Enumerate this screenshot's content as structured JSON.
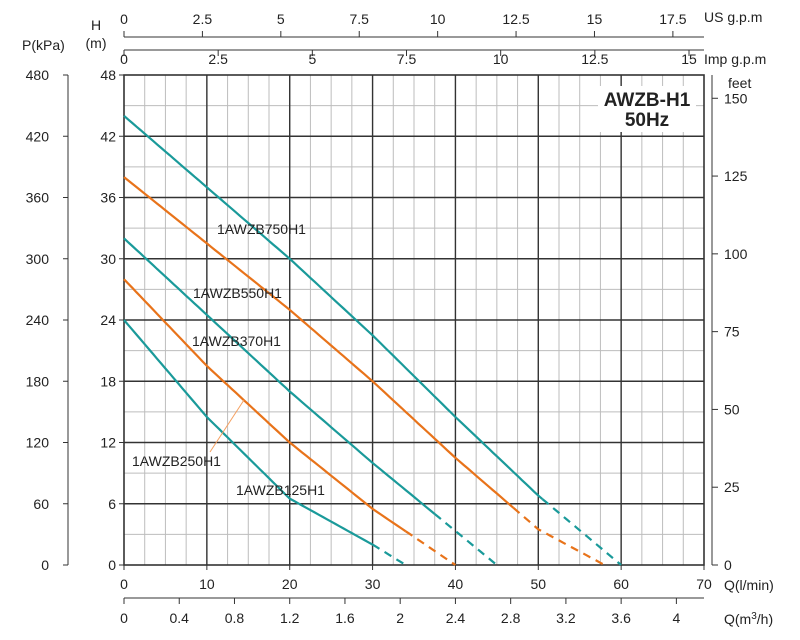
{
  "chart_data": {
    "type": "line",
    "title": "AWZB-H1",
    "subtitle": "50Hz",
    "xlabel": "Q(l/min)",
    "ylabel": "H (m)",
    "xlim": [
      0,
      70
    ],
    "ylim": [
      0,
      48
    ],
    "grid": true,
    "x_ticks": [
      "0",
      "10",
      "20",
      "30",
      "40",
      "50",
      "60",
      "70"
    ],
    "y_ticks": [
      "0",
      "6",
      "12",
      "18",
      "24",
      "30",
      "36",
      "42",
      "48"
    ],
    "y_title_line1": "H",
    "y_title_line2": "(m)",
    "secondary_axes": {
      "pressure": {
        "label": "P(kPa)",
        "ticks": [
          "0",
          "60",
          "120",
          "180",
          "240",
          "300",
          "360",
          "420",
          "480"
        ]
      },
      "feet": {
        "label": "feet",
        "ticks": [
          {
            "value": 0,
            "label": "0"
          },
          {
            "value": 25,
            "label": "25"
          },
          {
            "value": 50,
            "label": "50"
          },
          {
            "value": 75,
            "label": "75"
          },
          {
            "value": 100,
            "label": "100"
          },
          {
            "value": 125,
            "label": "125"
          },
          {
            "value": 150,
            "label": "150"
          }
        ]
      },
      "us_gpm": {
        "label": "US  g.p.m",
        "ticks": [
          {
            "value": 0,
            "label": "0"
          },
          {
            "value": 2.5,
            "label": "2.5"
          },
          {
            "value": 5,
            "label": "5"
          },
          {
            "value": 7.5,
            "label": "7.5"
          },
          {
            "value": 10,
            "label": "10"
          },
          {
            "value": 12.5,
            "label": "12.5"
          },
          {
            "value": 15,
            "label": "15"
          },
          {
            "value": 17.5,
            "label": "17.5"
          }
        ]
      },
      "imp_gpm": {
        "label": "Imp  g.p.m",
        "ticks": [
          {
            "value": 0,
            "label": "0"
          },
          {
            "value": 2.5,
            "label": "2.5"
          },
          {
            "value": 5,
            "label": "5"
          },
          {
            "value": 7.5,
            "label": "7.5"
          },
          {
            "value": 10,
            "label": "10"
          },
          {
            "value": 12.5,
            "label": "12.5"
          },
          {
            "value": 15,
            "label": "15"
          }
        ]
      },
      "m3h": {
        "label": "Q(m3/h)",
        "ticks": [
          {
            "value": 0,
            "label": "0"
          },
          {
            "value": 0.4,
            "label": "0.4"
          },
          {
            "value": 0.8,
            "label": "0.8"
          },
          {
            "value": 1.2,
            "label": "1.2"
          },
          {
            "value": 1.6,
            "label": "1.6"
          },
          {
            "value": 2.0,
            "label": "2"
          },
          {
            "value": 2.4,
            "label": "2.4"
          },
          {
            "value": 2.8,
            "label": "2.8"
          },
          {
            "value": 3.2,
            "label": "3.2"
          },
          {
            "value": 3.6,
            "label": "3.6"
          },
          {
            "value": 4.0,
            "label": "4"
          }
        ]
      }
    },
    "series": [
      {
        "name": "1AWZB750H1",
        "color": "#1a9a9a",
        "solid_x": [
          0,
          50.5
        ],
        "dashed_x": [
          50.5,
          60
        ],
        "points": [
          [
            0,
            44
          ],
          [
            10,
            37
          ],
          [
            20,
            30
          ],
          [
            30,
            22.5
          ],
          [
            40,
            14.5
          ],
          [
            50,
            6.8
          ],
          [
            60,
            0
          ]
        ]
      },
      {
        "name": "1AWZB550H1",
        "color": "#e8731a",
        "solid_x": [
          0,
          47
        ],
        "dashed_x": [
          47,
          58
        ],
        "points": [
          [
            0,
            38
          ],
          [
            10,
            31.5
          ],
          [
            20,
            25
          ],
          [
            30,
            18
          ],
          [
            40,
            10.5
          ],
          [
            50,
            3.5
          ],
          [
            58,
            0
          ]
        ]
      },
      {
        "name": "1AWZB370H1",
        "color": "#1a9a9a",
        "solid_x": [
          0,
          37.5
        ],
        "dashed_x": [
          37.5,
          45
        ],
        "points": [
          [
            0,
            32
          ],
          [
            10,
            24.5
          ],
          [
            20,
            17
          ],
          [
            30,
            10
          ],
          [
            37.5,
            5
          ],
          [
            45,
            0
          ]
        ]
      },
      {
        "name": "1AWZB250H1",
        "color": "#e8731a",
        "solid_x": [
          0,
          34
        ],
        "dashed_x": [
          34,
          40
        ],
        "points": [
          [
            0,
            28
          ],
          [
            10,
            19.5
          ],
          [
            20,
            12
          ],
          [
            30,
            5.5
          ],
          [
            40,
            0
          ]
        ]
      },
      {
        "name": "1AWZB125H1",
        "color": "#1a9a9a",
        "solid_x": [
          0,
          30
        ],
        "dashed_x": [
          30,
          34
        ],
        "points": [
          [
            0,
            24
          ],
          [
            10,
            14.5
          ],
          [
            20,
            6.5
          ],
          [
            30,
            2
          ],
          [
            34,
            0
          ]
        ]
      }
    ],
    "annotations": [
      {
        "text": "1AWZB750H1",
        "series": 0
      },
      {
        "text": "1AWZB550H1",
        "series": 1
      },
      {
        "text": "1AWZB370H1",
        "series": 2
      },
      {
        "text": "1AWZB250H1",
        "series": 3
      },
      {
        "text": "1AWZB125H1",
        "series": 4
      }
    ]
  }
}
